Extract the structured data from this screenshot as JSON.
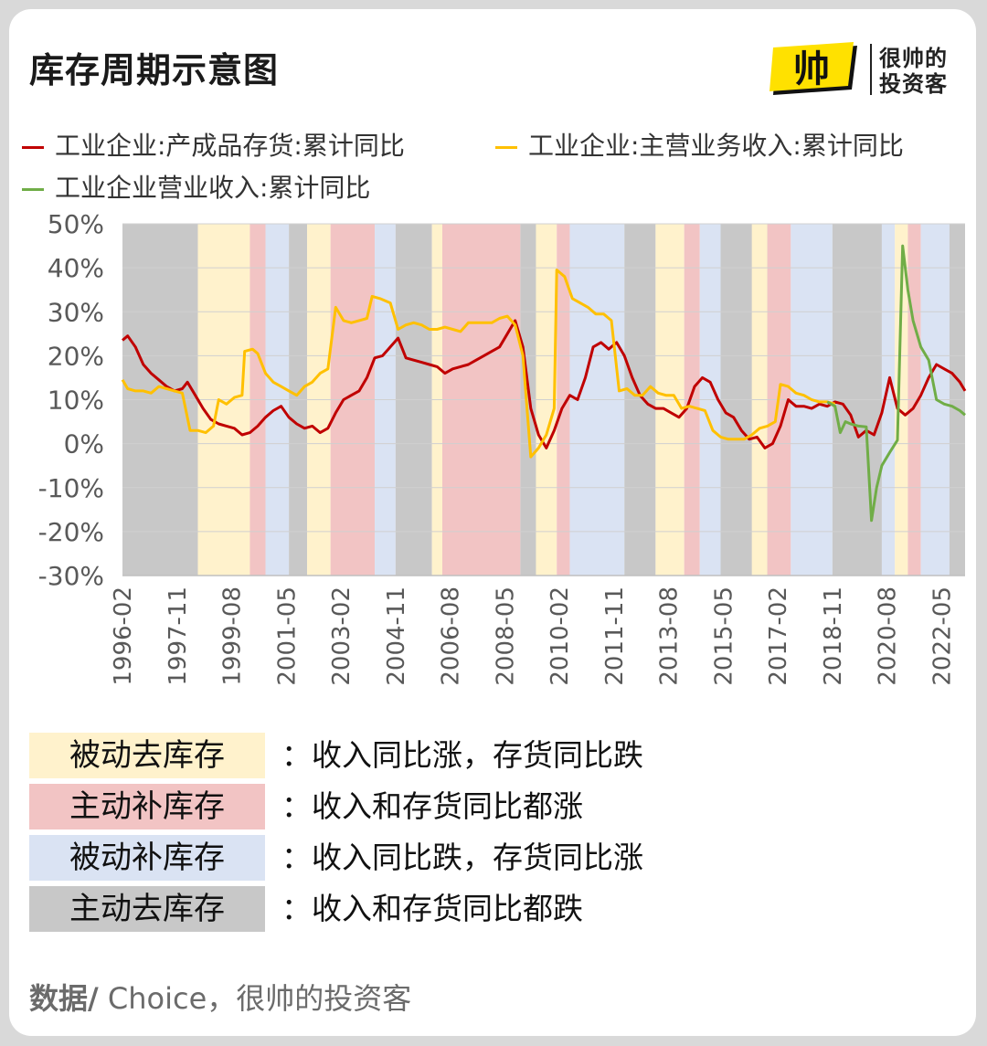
{
  "title": "库存周期示意图",
  "logo": {
    "mark": "帅",
    "line1": "很帅的",
    "line2": "投资客"
  },
  "legend": [
    {
      "label": "工业企业:产成品存货:累计同比",
      "color": "#c00000"
    },
    {
      "label": "工业企业:主营业务收入:累计同比",
      "color": "#ffc000"
    },
    {
      "label": "工业企业营业收入:累计同比",
      "color": "#70ad47"
    }
  ],
  "phase_colors": {
    "passive_destock": "#fff2cc",
    "active_restock": "#f2c4c4",
    "passive_restock": "#dae3f3",
    "active_destock": "#c8c8c8"
  },
  "phase_key": [
    {
      "label": "被动去库存",
      "desc": "：收入同比涨，存货同比跌",
      "phase": "passive_destock"
    },
    {
      "label": "主动补库存",
      "desc": "：收入和存货同比都涨",
      "phase": "active_restock"
    },
    {
      "label": "被动补库存",
      "desc": "：收入同比跌，存货同比涨",
      "phase": "passive_restock"
    },
    {
      "label": "主动去库存",
      "desc": "：收入和存货同比都跌",
      "phase": "active_destock"
    }
  ],
  "source": {
    "prefix": "数据/",
    "text": " Choice，很帅的投资客"
  },
  "chart_data": {
    "type": "line",
    "ylim": [
      -30,
      50
    ],
    "y_ticks": [
      "-30%",
      "-20%",
      "-10%",
      "0%",
      "10%",
      "20%",
      "30%",
      "40%",
      "50%"
    ],
    "x_range": [
      "1996-02",
      "2023-02"
    ],
    "x_ticks": [
      "1996-02",
      "1997-11",
      "1999-08",
      "2001-05",
      "2003-02",
      "2004-11",
      "2006-08",
      "2008-05",
      "2010-02",
      "2011-11",
      "2013-08",
      "2015-05",
      "2017-02",
      "2018-11",
      "2020-08",
      "2022-05"
    ],
    "phases": [
      {
        "start": "1996-02",
        "end": "1998-07",
        "phase": "active_destock"
      },
      {
        "start": "1998-07",
        "end": "2000-03",
        "phase": "passive_destock"
      },
      {
        "start": "2000-03",
        "end": "2000-09",
        "phase": "active_restock"
      },
      {
        "start": "2000-09",
        "end": "2001-06",
        "phase": "passive_restock"
      },
      {
        "start": "2001-06",
        "end": "2002-01",
        "phase": "active_destock"
      },
      {
        "start": "2002-01",
        "end": "2002-10",
        "phase": "passive_destock"
      },
      {
        "start": "2002-10",
        "end": "2004-03",
        "phase": "active_restock"
      },
      {
        "start": "2004-03",
        "end": "2004-11",
        "phase": "passive_restock"
      },
      {
        "start": "2004-11",
        "end": "2006-01",
        "phase": "active_destock"
      },
      {
        "start": "2006-01",
        "end": "2006-05",
        "phase": "passive_destock"
      },
      {
        "start": "2006-05",
        "end": "2008-11",
        "phase": "active_restock"
      },
      {
        "start": "2008-11",
        "end": "2009-05",
        "phase": "active_destock"
      },
      {
        "start": "2009-05",
        "end": "2010-01",
        "phase": "passive_destock"
      },
      {
        "start": "2010-01",
        "end": "2010-06",
        "phase": "active_restock"
      },
      {
        "start": "2010-06",
        "end": "2012-03",
        "phase": "passive_restock"
      },
      {
        "start": "2012-03",
        "end": "2013-03",
        "phase": "active_destock"
      },
      {
        "start": "2013-03",
        "end": "2014-02",
        "phase": "passive_destock"
      },
      {
        "start": "2014-02",
        "end": "2014-08",
        "phase": "active_restock"
      },
      {
        "start": "2014-08",
        "end": "2015-04",
        "phase": "passive_restock"
      },
      {
        "start": "2015-04",
        "end": "2017-02",
        "phase": "active_destock"
      },
      {
        "start": "2016-04",
        "end": "2016-10",
        "phase": "passive_destock"
      },
      {
        "start": "2016-10",
        "end": "2017-07",
        "phase": "active_restock"
      },
      {
        "start": "2017-07",
        "end": "2018-11",
        "phase": "passive_restock"
      },
      {
        "start": "2018-11",
        "end": "2020-06",
        "phase": "active_destock"
      },
      {
        "start": "2020-06",
        "end": "2020-11",
        "phase": "passive_restock"
      },
      {
        "start": "2020-11",
        "end": "2021-04",
        "phase": "passive_destock"
      },
      {
        "start": "2021-04",
        "end": "2021-09",
        "phase": "active_restock"
      },
      {
        "start": "2021-09",
        "end": "2022-08",
        "phase": "passive_restock"
      },
      {
        "start": "2022-08",
        "end": "2023-02",
        "phase": "active_destock"
      }
    ],
    "series": [
      {
        "name": "工业企业:产成品存货:累计同比",
        "color": "#c00000",
        "points": [
          [
            "1996-02",
            23.5
          ],
          [
            "1996-04",
            24.5
          ],
          [
            "1996-07",
            22
          ],
          [
            "1996-10",
            18
          ],
          [
            "1997-01",
            16
          ],
          [
            "1997-04",
            14.5
          ],
          [
            "1997-07",
            13
          ],
          [
            "1997-10",
            12
          ],
          [
            "1998-01",
            12.5
          ],
          [
            "1998-03",
            14
          ],
          [
            "1998-06",
            11
          ],
          [
            "1998-09",
            8
          ],
          [
            "1998-12",
            5.5
          ],
          [
            "1999-03",
            4.5
          ],
          [
            "1999-06",
            4
          ],
          [
            "1999-09",
            3.5
          ],
          [
            "1999-12",
            2
          ],
          [
            "2000-03",
            2.5
          ],
          [
            "2000-06",
            4
          ],
          [
            "2000-09",
            6
          ],
          [
            "2000-12",
            7.5
          ],
          [
            "2001-03",
            8.5
          ],
          [
            "2001-06",
            6
          ],
          [
            "2001-09",
            4.5
          ],
          [
            "2001-12",
            3.5
          ],
          [
            "2002-03",
            4
          ],
          [
            "2002-06",
            2.5
          ],
          [
            "2002-09",
            3.5
          ],
          [
            "2002-12",
            7
          ],
          [
            "2003-03",
            10
          ],
          [
            "2003-06",
            11
          ],
          [
            "2003-09",
            12
          ],
          [
            "2003-12",
            15
          ],
          [
            "2004-03",
            19.5
          ],
          [
            "2004-06",
            20
          ],
          [
            "2004-09",
            22
          ],
          [
            "2004-12",
            24
          ],
          [
            "2005-03",
            19.5
          ],
          [
            "2005-06",
            19
          ],
          [
            "2005-09",
            18.5
          ],
          [
            "2005-12",
            18
          ],
          [
            "2006-03",
            17.5
          ],
          [
            "2006-06",
            16
          ],
          [
            "2006-09",
            17
          ],
          [
            "2006-12",
            17.5
          ],
          [
            "2007-03",
            18
          ],
          [
            "2007-06",
            19
          ],
          [
            "2007-09",
            20
          ],
          [
            "2007-12",
            21
          ],
          [
            "2008-03",
            22
          ],
          [
            "2008-06",
            25
          ],
          [
            "2008-09",
            28
          ],
          [
            "2008-12",
            22
          ],
          [
            "2009-03",
            8
          ],
          [
            "2009-06",
            2
          ],
          [
            "2009-09",
            -1
          ],
          [
            "2009-12",
            3
          ],
          [
            "2010-03",
            8
          ],
          [
            "2010-06",
            11
          ],
          [
            "2010-09",
            10
          ],
          [
            "2010-12",
            15
          ],
          [
            "2011-03",
            22
          ],
          [
            "2011-06",
            23
          ],
          [
            "2011-09",
            21.5
          ],
          [
            "2011-12",
            23
          ],
          [
            "2012-03",
            20
          ],
          [
            "2012-06",
            15
          ],
          [
            "2012-09",
            11
          ],
          [
            "2012-12",
            9
          ],
          [
            "2013-03",
            8
          ],
          [
            "2013-06",
            8
          ],
          [
            "2013-09",
            7
          ],
          [
            "2013-12",
            6
          ],
          [
            "2014-03",
            8
          ],
          [
            "2014-06",
            13
          ],
          [
            "2014-09",
            15
          ],
          [
            "2014-12",
            14
          ],
          [
            "2015-03",
            10
          ],
          [
            "2015-06",
            7
          ],
          [
            "2015-09",
            6
          ],
          [
            "2015-12",
            3
          ],
          [
            "2016-03",
            1
          ],
          [
            "2016-06",
            1.5
          ],
          [
            "2016-09",
            -1
          ],
          [
            "2016-12",
            0
          ],
          [
            "2017-03",
            4
          ],
          [
            "2017-06",
            10
          ],
          [
            "2017-09",
            8.5
          ],
          [
            "2017-12",
            8.5
          ],
          [
            "2018-03",
            8
          ],
          [
            "2018-06",
            9
          ],
          [
            "2018-09",
            8.5
          ],
          [
            "2018-12",
            9.5
          ],
          [
            "2019-03",
            9
          ],
          [
            "2019-06",
            6.5
          ],
          [
            "2019-09",
            1.5
          ],
          [
            "2019-12",
            3
          ],
          [
            "2020-03",
            2
          ],
          [
            "2020-06",
            7
          ],
          [
            "2020-09",
            15
          ],
          [
            "2020-12",
            8
          ],
          [
            "2021-03",
            6.5
          ],
          [
            "2021-06",
            8
          ],
          [
            "2021-09",
            11
          ],
          [
            "2021-12",
            15
          ],
          [
            "2022-03",
            18
          ],
          [
            "2022-06",
            17
          ],
          [
            "2022-09",
            16
          ],
          [
            "2022-12",
            14
          ],
          [
            "2023-02",
            12
          ]
        ]
      },
      {
        "name": "工业企业:主营业务收入:累计同比",
        "color": "#ffc000",
        "points": [
          [
            "1996-02",
            14.5
          ],
          [
            "1996-04",
            12.5
          ],
          [
            "1996-07",
            12
          ],
          [
            "1996-10",
            12
          ],
          [
            "1997-01",
            11.5
          ],
          [
            "1997-04",
            13
          ],
          [
            "1997-07",
            12.5
          ],
          [
            "1997-10",
            12
          ],
          [
            "1998-01",
            11.5
          ],
          [
            "1998-04",
            3
          ],
          [
            "1998-07",
            3
          ],
          [
            "1998-10",
            2.5
          ],
          [
            "1999-01",
            4
          ],
          [
            "1999-03",
            10
          ],
          [
            "1999-06",
            9
          ],
          [
            "1999-09",
            10.5
          ],
          [
            "1999-12",
            11
          ],
          [
            "2000-01",
            21
          ],
          [
            "2000-04",
            21.5
          ],
          [
            "2000-06",
            20.5
          ],
          [
            "2000-09",
            16
          ],
          [
            "2000-12",
            14
          ],
          [
            "2001-03",
            13
          ],
          [
            "2001-06",
            12
          ],
          [
            "2001-09",
            11
          ],
          [
            "2001-12",
            13
          ],
          [
            "2002-03",
            14
          ],
          [
            "2002-06",
            16
          ],
          [
            "2002-09",
            17
          ],
          [
            "2002-12",
            31
          ],
          [
            "2003-03",
            28
          ],
          [
            "2003-06",
            27.5
          ],
          [
            "2003-09",
            28
          ],
          [
            "2003-12",
            28.5
          ],
          [
            "2004-02",
            33.5
          ],
          [
            "2004-05",
            33
          ],
          [
            "2004-09",
            32
          ],
          [
            "2004-12",
            26
          ],
          [
            "2005-03",
            27
          ],
          [
            "2005-06",
            27.5
          ],
          [
            "2005-09",
            27
          ],
          [
            "2005-12",
            26
          ],
          [
            "2006-03",
            26
          ],
          [
            "2006-06",
            26.5
          ],
          [
            "2006-09",
            26
          ],
          [
            "2006-12",
            25.5
          ],
          [
            "2007-03",
            27.5
          ],
          [
            "2007-06",
            27.5
          ],
          [
            "2007-09",
            27.5
          ],
          [
            "2007-12",
            27.5
          ],
          [
            "2008-03",
            28.5
          ],
          [
            "2008-06",
            29
          ],
          [
            "2008-09",
            27
          ],
          [
            "2008-12",
            20
          ],
          [
            "2009-03",
            -3
          ],
          [
            "2009-06",
            -1
          ],
          [
            "2009-09",
            2
          ],
          [
            "2009-12",
            8
          ],
          [
            "2010-01",
            39.5
          ],
          [
            "2010-04",
            38
          ],
          [
            "2010-07",
            33
          ],
          [
            "2010-10",
            32
          ],
          [
            "2011-01",
            31
          ],
          [
            "2011-04",
            29.5
          ],
          [
            "2011-07",
            29.5
          ],
          [
            "2011-10",
            28
          ],
          [
            "2012-01",
            12
          ],
          [
            "2012-04",
            12.5
          ],
          [
            "2012-07",
            11
          ],
          [
            "2012-10",
            11
          ],
          [
            "2013-01",
            13
          ],
          [
            "2013-04",
            11.5
          ],
          [
            "2013-07",
            11
          ],
          [
            "2013-10",
            11
          ],
          [
            "2014-01",
            8
          ],
          [
            "2014-04",
            8.5
          ],
          [
            "2014-07",
            8
          ],
          [
            "2014-10",
            7.5
          ],
          [
            "2015-01",
            3
          ],
          [
            "2015-04",
            1.5
          ],
          [
            "2015-07",
            1
          ],
          [
            "2015-10",
            1
          ],
          [
            "2016-01",
            1
          ],
          [
            "2016-04",
            2
          ],
          [
            "2016-07",
            3.5
          ],
          [
            "2016-10",
            4
          ],
          [
            "2017-01",
            5
          ],
          [
            "2017-03",
            13.5
          ],
          [
            "2017-06",
            13
          ],
          [
            "2017-09",
            11.5
          ],
          [
            "2017-12",
            11
          ],
          [
            "2018-03",
            10
          ],
          [
            "2018-06",
            9.5
          ],
          [
            "2018-09",
            9.5
          ],
          [
            "2018-12",
            9
          ]
        ]
      },
      {
        "name": "工业企业营业收入:累计同比",
        "color": "#70ad47",
        "points": [
          [
            "2018-09",
            9.5
          ],
          [
            "2018-12",
            8.5
          ],
          [
            "2019-02",
            2.5
          ],
          [
            "2019-04",
            5
          ],
          [
            "2019-06",
            4.5
          ],
          [
            "2019-09",
            4
          ],
          [
            "2019-12",
            3.8
          ],
          [
            "2020-02",
            -17.5
          ],
          [
            "2020-04",
            -10
          ],
          [
            "2020-06",
            -5
          ],
          [
            "2020-09",
            -2
          ],
          [
            "2020-12",
            0.8
          ],
          [
            "2021-02",
            45
          ],
          [
            "2021-04",
            35
          ],
          [
            "2021-06",
            28
          ],
          [
            "2021-09",
            22
          ],
          [
            "2021-12",
            19
          ],
          [
            "2022-03",
            10
          ],
          [
            "2022-06",
            9
          ],
          [
            "2022-09",
            8.5
          ],
          [
            "2022-12",
            7.5
          ],
          [
            "2023-02",
            6.5
          ]
        ]
      }
    ]
  }
}
